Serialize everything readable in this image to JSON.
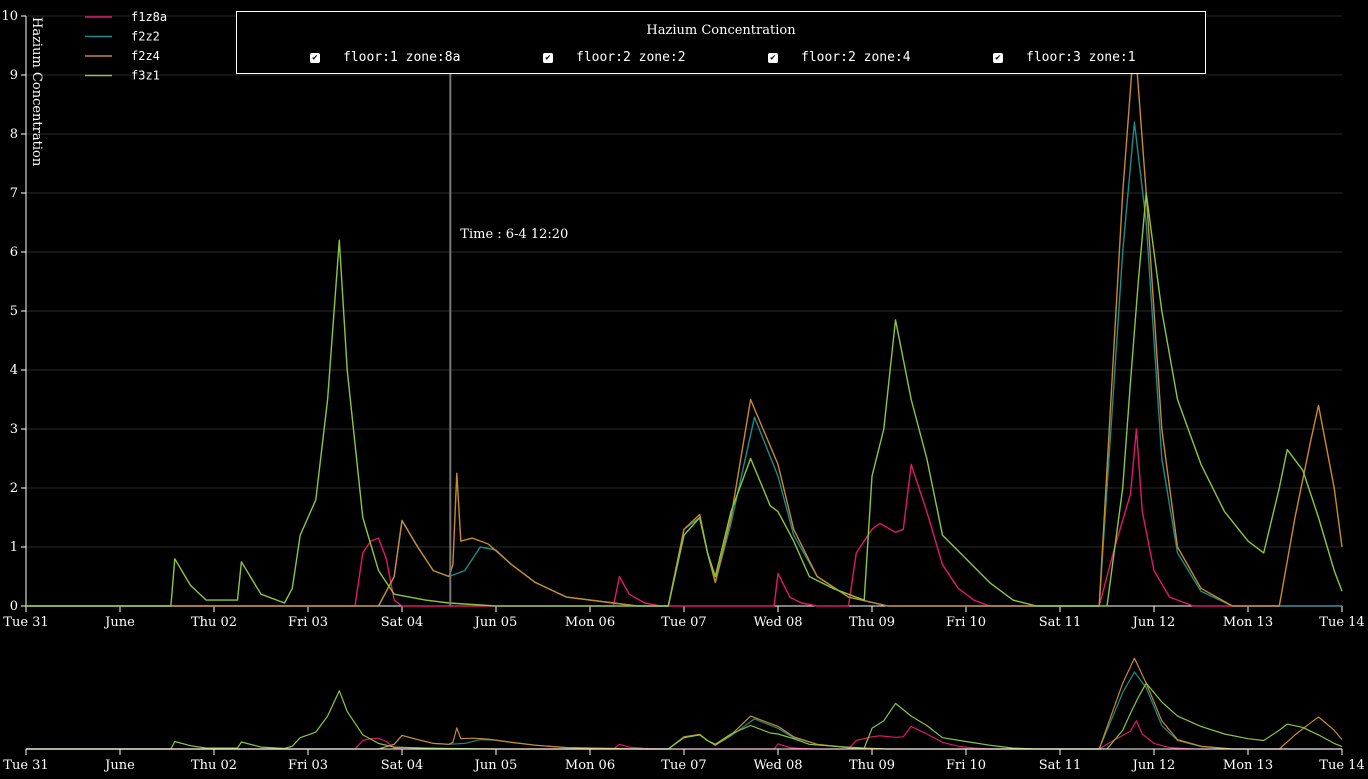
{
  "chart_data": {
    "type": "line",
    "title": "Hazium Concentration",
    "ylabel": "Hazium Concentration",
    "ylim": [
      0,
      10
    ],
    "yticks": [
      "0",
      "1",
      "2",
      "3",
      "4",
      "5",
      "6",
      "7",
      "8",
      "9",
      "10"
    ],
    "xlim": [
      "2016-05-31 00:00",
      "2016-06-14 00:00"
    ],
    "xticks": [
      {
        "t": "2016-05-31 00:00",
        "label": "Tue 31"
      },
      {
        "t": "2016-06-01 00:00",
        "label": "June"
      },
      {
        "t": "2016-06-02 00:00",
        "label": "Thu 02"
      },
      {
        "t": "2016-06-03 00:00",
        "label": "Fri 03"
      },
      {
        "t": "2016-06-04 00:00",
        "label": "Sat 04"
      },
      {
        "t": "2016-06-05 00:00",
        "label": "Jun 05"
      },
      {
        "t": "2016-06-06 00:00",
        "label": "Mon 06"
      },
      {
        "t": "2016-06-07 00:00",
        "label": "Tue 07"
      },
      {
        "t": "2016-06-08 00:00",
        "label": "Wed 08"
      },
      {
        "t": "2016-06-09 00:00",
        "label": "Thu 09"
      },
      {
        "t": "2016-06-10 00:00",
        "label": "Fri 10"
      },
      {
        "t": "2016-06-11 00:00",
        "label": "Sat 11"
      },
      {
        "t": "2016-06-12 00:00",
        "label": "Jun 12"
      },
      {
        "t": "2016-06-13 00:00",
        "label": "Mon 13"
      },
      {
        "t": "2016-06-14 00:00",
        "label": "Tue 14"
      }
    ],
    "grid": true,
    "legend_position": "top-left",
    "cursor": {
      "t": "2016-06-04 12:20",
      "label": "Time : 6-4 12:20"
    },
    "series": [
      {
        "name": "f1z8a",
        "color": "#e0186c",
        "points": [
          [
            "2016-05-31 00:00",
            0
          ],
          [
            "2016-06-03 12:00",
            0
          ],
          [
            "2016-06-03 14:00",
            0.9
          ],
          [
            "2016-06-03 16:00",
            1.1
          ],
          [
            "2016-06-03 18:00",
            1.15
          ],
          [
            "2016-06-03 20:00",
            0.8
          ],
          [
            "2016-06-03 22:00",
            0.1
          ],
          [
            "2016-06-04 00:00",
            0
          ],
          [
            "2016-06-06 06:00",
            0
          ],
          [
            "2016-06-06 07:30",
            0.5
          ],
          [
            "2016-06-06 10:00",
            0.2
          ],
          [
            "2016-06-06 14:00",
            0.05
          ],
          [
            "2016-06-06 18:00",
            0
          ],
          [
            "2016-06-07 23:00",
            0
          ],
          [
            "2016-06-08 00:00",
            0.55
          ],
          [
            "2016-06-08 03:00",
            0.15
          ],
          [
            "2016-06-08 06:00",
            0.05
          ],
          [
            "2016-06-08 10:00",
            0
          ],
          [
            "2016-06-08 18:00",
            0
          ],
          [
            "2016-06-08 20:00",
            0.9
          ],
          [
            "2016-06-09 00:00",
            1.3
          ],
          [
            "2016-06-09 02:00",
            1.4
          ],
          [
            "2016-06-09 06:00",
            1.25
          ],
          [
            "2016-06-09 08:00",
            1.3
          ],
          [
            "2016-06-09 10:00",
            2.4
          ],
          [
            "2016-06-09 14:00",
            1.6
          ],
          [
            "2016-06-09 18:00",
            0.7
          ],
          [
            "2016-06-09 22:00",
            0.3
          ],
          [
            "2016-06-10 02:00",
            0.1
          ],
          [
            "2016-06-10 06:00",
            0
          ],
          [
            "2016-06-11 10:00",
            0
          ],
          [
            "2016-06-11 14:00",
            1.0
          ],
          [
            "2016-06-11 18:00",
            1.9
          ],
          [
            "2016-06-11 19:30",
            3.0
          ],
          [
            "2016-06-11 21:00",
            1.6
          ],
          [
            "2016-06-12 00:00",
            0.6
          ],
          [
            "2016-06-12 04:00",
            0.15
          ],
          [
            "2016-06-12 10:00",
            0
          ],
          [
            "2016-06-14 00:00",
            0
          ]
        ]
      },
      {
        "name": "f2z2",
        "color": "#1e8a8a",
        "points": [
          [
            "2016-05-31 00:00",
            0
          ],
          [
            "2016-06-03 18:00",
            0
          ],
          [
            "2016-06-03 22:00",
            0.5
          ],
          [
            "2016-06-04 00:00",
            1.45
          ],
          [
            "2016-06-04 04:00",
            1.0
          ],
          [
            "2016-06-04 08:00",
            0.6
          ],
          [
            "2016-06-04 12:00",
            0.5
          ],
          [
            "2016-06-04 16:00",
            0.6
          ],
          [
            "2016-06-04 20:00",
            1.0
          ],
          [
            "2016-06-05 00:00",
            0.95
          ],
          [
            "2016-06-05 04:00",
            0.7
          ],
          [
            "2016-06-05 10:00",
            0.4
          ],
          [
            "2016-06-05 18:00",
            0.15
          ],
          [
            "2016-06-06 06:00",
            0.05
          ],
          [
            "2016-06-06 12:00",
            0
          ],
          [
            "2016-06-06 20:00",
            0
          ],
          [
            "2016-06-07 00:00",
            1.3
          ],
          [
            "2016-06-07 04:00",
            1.5
          ],
          [
            "2016-06-07 06:00",
            0.9
          ],
          [
            "2016-06-07 08:00",
            0.4
          ],
          [
            "2016-06-07 12:00",
            1.4
          ],
          [
            "2016-06-07 18:00",
            3.2
          ],
          [
            "2016-06-08 00:00",
            2.2
          ],
          [
            "2016-06-08 04:00",
            1.2
          ],
          [
            "2016-06-08 10:00",
            0.5
          ],
          [
            "2016-06-08 18:00",
            0.15
          ],
          [
            "2016-06-09 04:00",
            0
          ],
          [
            "2016-06-11 10:00",
            0
          ],
          [
            "2016-06-11 16:00",
            6.0
          ],
          [
            "2016-06-11 19:00",
            8.2
          ],
          [
            "2016-06-11 22:00",
            6.5
          ],
          [
            "2016-06-12 02:00",
            2.5
          ],
          [
            "2016-06-12 06:00",
            0.9
          ],
          [
            "2016-06-12 12:00",
            0.25
          ],
          [
            "2016-06-12 20:00",
            0
          ],
          [
            "2016-06-14 00:00",
            0
          ]
        ]
      },
      {
        "name": "f2z4",
        "color": "#c98b2a",
        "points": [
          [
            "2016-05-31 00:00",
            0
          ],
          [
            "2016-06-03 18:00",
            0
          ],
          [
            "2016-06-03 22:00",
            0.5
          ],
          [
            "2016-06-04 00:00",
            1.45
          ],
          [
            "2016-06-04 04:00",
            1.0
          ],
          [
            "2016-06-04 08:00",
            0.6
          ],
          [
            "2016-06-04 12:00",
            0.5
          ],
          [
            "2016-06-04 13:00",
            0.7
          ],
          [
            "2016-06-04 14:00",
            2.25
          ],
          [
            "2016-06-04 15:00",
            1.1
          ],
          [
            "2016-06-04 18:00",
            1.15
          ],
          [
            "2016-06-04 22:00",
            1.05
          ],
          [
            "2016-06-05 04:00",
            0.7
          ],
          [
            "2016-06-05 10:00",
            0.4
          ],
          [
            "2016-06-05 18:00",
            0.15
          ],
          [
            "2016-06-06 06:00",
            0.05
          ],
          [
            "2016-06-06 12:00",
            0
          ],
          [
            "2016-06-06 20:00",
            0
          ],
          [
            "2016-06-07 00:00",
            1.3
          ],
          [
            "2016-06-07 04:00",
            1.55
          ],
          [
            "2016-06-07 06:00",
            0.9
          ],
          [
            "2016-06-07 08:00",
            0.4
          ],
          [
            "2016-06-07 12:00",
            1.5
          ],
          [
            "2016-06-07 17:00",
            3.5
          ],
          [
            "2016-06-08 00:00",
            2.4
          ],
          [
            "2016-06-08 04:00",
            1.3
          ],
          [
            "2016-06-08 10:00",
            0.5
          ],
          [
            "2016-06-08 18:00",
            0.15
          ],
          [
            "2016-06-09 04:00",
            0
          ],
          [
            "2016-06-11 10:00",
            0
          ],
          [
            "2016-06-11 16:00",
            7.0
          ],
          [
            "2016-06-11 19:00",
            9.65
          ],
          [
            "2016-06-11 20:00",
            8.8
          ],
          [
            "2016-06-11 22:00",
            7.0
          ],
          [
            "2016-06-12 02:00",
            3.0
          ],
          [
            "2016-06-12 06:00",
            1.0
          ],
          [
            "2016-06-12 12:00",
            0.3
          ],
          [
            "2016-06-12 20:00",
            0
          ],
          [
            "2016-06-13 08:00",
            0
          ],
          [
            "2016-06-13 12:00",
            1.5
          ],
          [
            "2016-06-13 16:00",
            2.8
          ],
          [
            "2016-06-13 18:00",
            3.4
          ],
          [
            "2016-06-13 22:00",
            2.0
          ],
          [
            "2016-06-14 00:00",
            1.0
          ]
        ]
      },
      {
        "name": "f3z1",
        "color": "#8cc63f",
        "points": [
          [
            "2016-05-31 00:00",
            0
          ],
          [
            "2016-06-01 13:00",
            0
          ],
          [
            "2016-06-01 14:00",
            0.8
          ],
          [
            "2016-06-01 18:00",
            0.35
          ],
          [
            "2016-06-01 22:00",
            0.1
          ],
          [
            "2016-06-02 06:00",
            0.1
          ],
          [
            "2016-06-02 07:00",
            0.75
          ],
          [
            "2016-06-02 12:00",
            0.2
          ],
          [
            "2016-06-02 18:00",
            0.05
          ],
          [
            "2016-06-02 20:00",
            0.3
          ],
          [
            "2016-06-02 22:00",
            1.2
          ],
          [
            "2016-06-03 00:00",
            1.5
          ],
          [
            "2016-06-03 02:00",
            1.8
          ],
          [
            "2016-06-03 05:00",
            3.5
          ],
          [
            "2016-06-03 08:00",
            6.2
          ],
          [
            "2016-06-03 10:00",
            4.0
          ],
          [
            "2016-06-03 14:00",
            1.5
          ],
          [
            "2016-06-03 18:00",
            0.6
          ],
          [
            "2016-06-03 22:00",
            0.2
          ],
          [
            "2016-06-04 06:00",
            0.1
          ],
          [
            "2016-06-04 12:00",
            0.05
          ],
          [
            "2016-06-05 00:00",
            0
          ],
          [
            "2016-06-06 20:00",
            0
          ],
          [
            "2016-06-07 00:00",
            1.2
          ],
          [
            "2016-06-07 04:00",
            1.5
          ],
          [
            "2016-06-07 06:00",
            0.9
          ],
          [
            "2016-06-07 08:00",
            0.5
          ],
          [
            "2016-06-07 12:00",
            1.6
          ],
          [
            "2016-06-07 17:00",
            2.5
          ],
          [
            "2016-06-07 22:00",
            1.7
          ],
          [
            "2016-06-08 00:00",
            1.6
          ],
          [
            "2016-06-08 04:00",
            1.1
          ],
          [
            "2016-06-08 08:00",
            0.5
          ],
          [
            "2016-06-08 14:00",
            0.3
          ],
          [
            "2016-06-08 22:00",
            0.1
          ],
          [
            "2016-06-09 00:00",
            2.2
          ],
          [
            "2016-06-09 03:00",
            3.0
          ],
          [
            "2016-06-09 06:00",
            4.85
          ],
          [
            "2016-06-09 10:00",
            3.5
          ],
          [
            "2016-06-09 14:00",
            2.5
          ],
          [
            "2016-06-09 18:00",
            1.2
          ],
          [
            "2016-06-10 00:00",
            0.8
          ],
          [
            "2016-06-10 06:00",
            0.4
          ],
          [
            "2016-06-10 12:00",
            0.1
          ],
          [
            "2016-06-10 18:00",
            0
          ],
          [
            "2016-06-11 12:00",
            0
          ],
          [
            "2016-06-11 16:00",
            2.0
          ],
          [
            "2016-06-11 18:00",
            3.8
          ],
          [
            "2016-06-11 20:00",
            5.5
          ],
          [
            "2016-06-11 22:00",
            7.0
          ],
          [
            "2016-06-12 02:00",
            5.0
          ],
          [
            "2016-06-12 06:00",
            3.5
          ],
          [
            "2016-06-12 12:00",
            2.4
          ],
          [
            "2016-06-12 18:00",
            1.6
          ],
          [
            "2016-06-13 00:00",
            1.1
          ],
          [
            "2016-06-13 04:00",
            0.9
          ],
          [
            "2016-06-13 08:00",
            2.0
          ],
          [
            "2016-06-13 10:00",
            2.65
          ],
          [
            "2016-06-13 14:00",
            2.3
          ],
          [
            "2016-06-13 18:00",
            1.5
          ],
          [
            "2016-06-13 22:00",
            0.6
          ],
          [
            "2016-06-14 00:00",
            0.25
          ]
        ]
      }
    ]
  },
  "legend_panel": {
    "title": "Hazium Concentration",
    "items": [
      {
        "label": "floor:1 zone:8a",
        "checked": true
      },
      {
        "label": "floor:2 zone:2",
        "checked": true
      },
      {
        "label": "floor:2 zone:4",
        "checked": true
      },
      {
        "label": "floor:3 zone:1",
        "checked": true
      }
    ]
  },
  "icons": {
    "checkbox": "checkbox-checked-icon"
  }
}
